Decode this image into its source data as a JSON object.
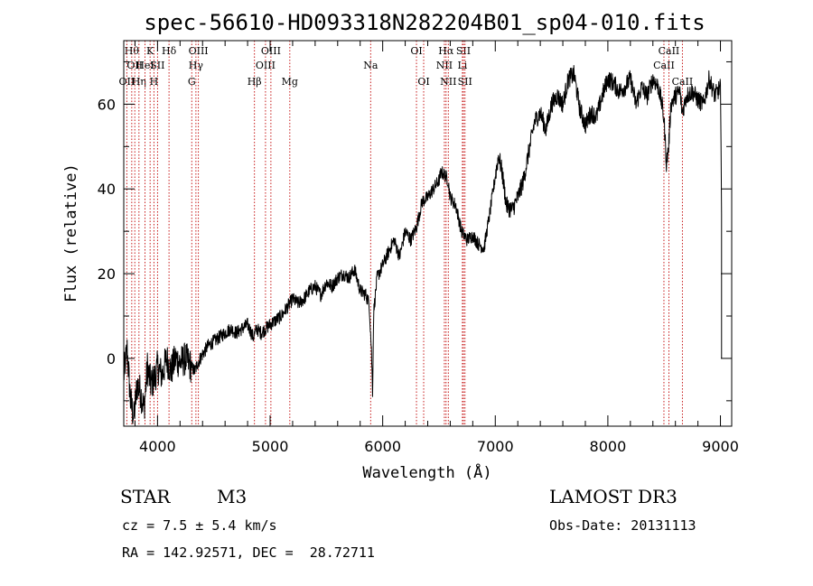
{
  "chart_data": {
    "type": "line",
    "title": "spec-56610-HD093318N282204B01_sp04-010.fits",
    "xlabel": "Wavelength (Å)",
    "ylabel": "Flux (relative)",
    "xlim": [
      3700,
      9100
    ],
    "ylim": [
      -16,
      75
    ],
    "xticks": [
      4000,
      5000,
      6000,
      7000,
      8000,
      9000
    ],
    "yticks": [
      0,
      20,
      40,
      60
    ],
    "series": [
      {
        "name": "spectrum",
        "x": [
          3700,
          3730,
          3760,
          3790,
          3820,
          3850,
          3880,
          3910,
          3940,
          3970,
          4000,
          4040,
          4080,
          4120,
          4160,
          4200,
          4250,
          4300,
          4330,
          4360,
          4400,
          4450,
          4500,
          4550,
          4600,
          4650,
          4700,
          4750,
          4800,
          4850,
          4880,
          4920,
          4960,
          5000,
          5050,
          5100,
          5150,
          5200,
          5250,
          5300,
          5350,
          5400,
          5450,
          5500,
          5550,
          5600,
          5650,
          5700,
          5750,
          5800,
          5850,
          5880,
          5900,
          5910,
          5920,
          5950,
          6000,
          6050,
          6100,
          6150,
          6200,
          6250,
          6300,
          6350,
          6400,
          6450,
          6500,
          6520,
          6560,
          6580,
          6600,
          6650,
          6700,
          6750,
          6800,
          6850,
          6900,
          6950,
          7000,
          7030,
          7060,
          7100,
          7150,
          7200,
          7250,
          7300,
          7350,
          7400,
          7450,
          7500,
          7550,
          7600,
          7650,
          7700,
          7750,
          7800,
          7850,
          7900,
          7950,
          8000,
          8050,
          8100,
          8150,
          8200,
          8250,
          8300,
          8350,
          8400,
          8450,
          8480,
          8500,
          8520,
          8540,
          8560,
          8600,
          8640,
          8660,
          8700,
          8750,
          8800,
          8850,
          8900,
          8950,
          9000,
          9010
        ],
        "y": [
          -4,
          2,
          -10,
          -14,
          -6,
          -8,
          -12,
          -2,
          -6,
          -5,
          -2,
          -4,
          0,
          -3,
          0,
          -1,
          0,
          -2,
          -3,
          -1,
          1,
          3,
          4,
          5,
          6,
          7,
          6,
          7,
          8,
          5,
          7,
          6,
          7,
          8,
          9,
          10,
          12,
          14,
          13,
          14,
          16,
          17,
          15,
          18,
          17,
          19,
          20,
          19,
          21,
          16,
          15,
          13,
          2,
          -8,
          11,
          19,
          22,
          25,
          28,
          24,
          30,
          28,
          31,
          37,
          38,
          40,
          42,
          44,
          43,
          42,
          38,
          36,
          30,
          28,
          29,
          27,
          26,
          34,
          43,
          48,
          44,
          36,
          35,
          38,
          42,
          49,
          56,
          58,
          54,
          60,
          62,
          60,
          66,
          67,
          59,
          55,
          58,
          57,
          62,
          66,
          65,
          63,
          64,
          66,
          60,
          64,
          62,
          66,
          64,
          60,
          56,
          46,
          50,
          60,
          62,
          63,
          58,
          62,
          63,
          61,
          60,
          66,
          62,
          64,
          34
        ]
      }
    ],
    "line_markers": [
      {
        "wl": 3771,
        "label": "Hθ",
        "row": 0
      },
      {
        "wl": 3798,
        "label": "OII",
        "row": 1
      },
      {
        "wl": 3727,
        "label": "OII",
        "row": 2
      },
      {
        "wl": 3835,
        "label": "Hη",
        "row": 2
      },
      {
        "wl": 3889,
        "label": "HeI",
        "row": 1
      },
      {
        "wl": 3934,
        "label": "K",
        "row": 0
      },
      {
        "wl": 3968,
        "label": "H",
        "row": 2
      },
      {
        "wl": 4000,
        "label": "SII",
        "row": 1
      },
      {
        "wl": 4102,
        "label": "Hδ",
        "row": 0
      },
      {
        "wl": 4304,
        "label": "G",
        "row": 2
      },
      {
        "wl": 4341,
        "label": "Hγ",
        "row": 1
      },
      {
        "wl": 4363,
        "label": "OIII",
        "row": 0
      },
      {
        "wl": 4861,
        "label": "Hβ",
        "row": 2
      },
      {
        "wl": 4959,
        "label": "OIII",
        "row": 1
      },
      {
        "wl": 5007,
        "label": "OIII",
        "row": 0
      },
      {
        "wl": 5175,
        "label": "Mg",
        "row": 2
      },
      {
        "wl": 5893,
        "label": "Na",
        "row": 1
      },
      {
        "wl": 6300,
        "label": "OI",
        "row": 0
      },
      {
        "wl": 6364,
        "label": "OI",
        "row": 2
      },
      {
        "wl": 6548,
        "label": "NII",
        "row": 1
      },
      {
        "wl": 6563,
        "label": "Hα",
        "row": 0
      },
      {
        "wl": 6583,
        "label": "NII",
        "row": 2
      },
      {
        "wl": 6708,
        "label": "Li",
        "row": 1
      },
      {
        "wl": 6717,
        "label": "SII",
        "row": 0
      },
      {
        "wl": 6731,
        "label": "SII",
        "row": 2
      },
      {
        "wl": 8498,
        "label": "CaII",
        "row": 1
      },
      {
        "wl": 8542,
        "label": "CaII",
        "row": 0
      },
      {
        "wl": 8662,
        "label": "CaII",
        "row": 2
      }
    ]
  },
  "info": {
    "class": "STAR",
    "subclass": "M3",
    "survey": "LAMOST DR3",
    "cz": "cz = 7.5 ± 5.4 km/s",
    "obs_date": "Obs-Date: 20131113",
    "radec": "RA = 142.92571, DEC =  28.72711"
  }
}
